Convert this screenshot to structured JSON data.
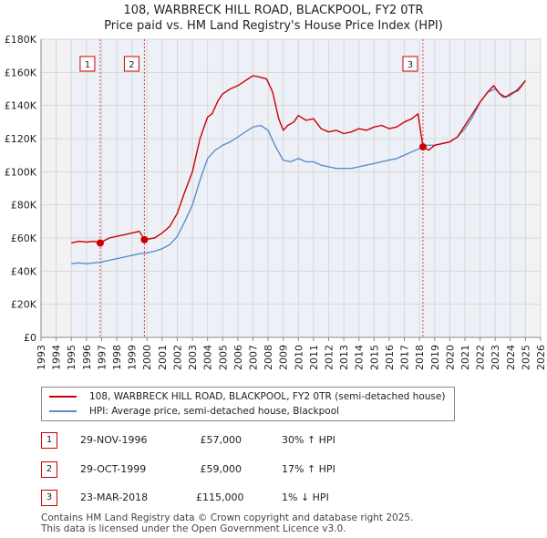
{
  "chart_data": {
    "type": "line",
    "title": "108, WARBRECK HILL ROAD, BLACKPOOL, FY2 0TR",
    "subtitle": "Price paid vs. HM Land Registry's House Price Index (HPI)",
    "xlabel": "",
    "ylabel": "",
    "xlim": [
      1993,
      2026
    ],
    "ylim": [
      0,
      180000
    ],
    "x_ticks": [
      "1993",
      "1994",
      "1995",
      "1996",
      "1997",
      "1998",
      "1999",
      "2000",
      "2001",
      "2002",
      "2003",
      "2004",
      "2005",
      "2006",
      "2007",
      "2008",
      "2009",
      "2010",
      "2011",
      "2012",
      "2013",
      "2014",
      "2015",
      "2016",
      "2017",
      "2018",
      "2019",
      "2020",
      "2021",
      "2022",
      "2023",
      "2024",
      "2025",
      "2026"
    ],
    "y_ticks": [
      {
        "value": 0,
        "label": "£0"
      },
      {
        "value": 20000,
        "label": "£20K"
      },
      {
        "value": 40000,
        "label": "£40K"
      },
      {
        "value": 60000,
        "label": "£60K"
      },
      {
        "value": 80000,
        "label": "£80K"
      },
      {
        "value": 100000,
        "label": "£100K"
      },
      {
        "value": 120000,
        "label": "£120K"
      },
      {
        "value": 140000,
        "label": "£140K"
      },
      {
        "value": 160000,
        "label": "£160K"
      },
      {
        "value": 180000,
        "label": "£180K"
      }
    ],
    "grid": true,
    "data_range_shading": [
      1995.0,
      2025.0
    ],
    "series": [
      {
        "name": "108, WARBRECK HILL ROAD, BLACKPOOL, FY2 0TR (semi-detached house)",
        "color": "#cc0000",
        "x": [
          1995.0,
          1995.5,
          1996.0,
          1996.5,
          1996.91,
          1997.5,
          1998.0,
          1998.5,
          1999.0,
          1999.5,
          1999.83,
          2000.5,
          2001.0,
          2001.5,
          2002.0,
          2002.5,
          2003.0,
          2003.5,
          2004.0,
          2004.3,
          2004.7,
          2005.0,
          2005.5,
          2006.0,
          2006.5,
          2007.0,
          2007.5,
          2007.9,
          2008.3,
          2008.7,
          2009.0,
          2009.3,
          2009.7,
          2010.0,
          2010.5,
          2011.0,
          2011.5,
          2012.0,
          2012.5,
          2013.0,
          2013.5,
          2014.0,
          2014.5,
          2015.0,
          2015.5,
          2016.0,
          2016.5,
          2017.0,
          2017.5,
          2017.9,
          2018.23,
          2018.6,
          2019.0,
          2019.5,
          2020.0,
          2020.5,
          2021.0,
          2021.5,
          2022.0,
          2022.5,
          2022.9,
          2023.3,
          2023.7,
          2024.0,
          2024.5,
          2025.0
        ],
        "y": [
          57000,
          58000,
          57500,
          58000,
          57000,
          60000,
          61000,
          62000,
          63000,
          64000,
          59000,
          60000,
          63000,
          67000,
          75000,
          88000,
          100000,
          120000,
          133000,
          135000,
          143000,
          147000,
          150000,
          152000,
          155000,
          158000,
          157000,
          156000,
          148000,
          132000,
          125000,
          128000,
          130000,
          134000,
          131000,
          132000,
          126000,
          124000,
          125000,
          123000,
          124000,
          126000,
          125000,
          127000,
          128000,
          126000,
          127000,
          130000,
          132000,
          135000,
          115000,
          113000,
          116000,
          117000,
          118000,
          121000,
          128000,
          135000,
          142000,
          148000,
          152000,
          147000,
          145000,
          147000,
          149000,
          155000
        ]
      },
      {
        "name": "HPI: Average price, semi-detached house, Blackpool",
        "color": "#5b8fcc",
        "x": [
          1995.0,
          1995.5,
          1996.0,
          1996.5,
          1997.0,
          1997.5,
          1998.0,
          1998.5,
          1999.0,
          1999.5,
          2000.0,
          2000.5,
          2001.0,
          2001.5,
          2002.0,
          2002.5,
          2003.0,
          2003.5,
          2004.0,
          2004.5,
          2005.0,
          2005.5,
          2006.0,
          2006.5,
          2007.0,
          2007.5,
          2008.0,
          2008.5,
          2009.0,
          2009.5,
          2010.0,
          2010.5,
          2011.0,
          2011.5,
          2012.0,
          2012.5,
          2013.0,
          2013.5,
          2014.0,
          2014.5,
          2015.0,
          2015.5,
          2016.0,
          2016.5,
          2017.0,
          2017.5,
          2018.0,
          2018.5,
          2019.0,
          2019.5,
          2020.0,
          2020.5,
          2021.0,
          2021.5,
          2022.0,
          2022.5,
          2023.0,
          2023.5,
          2024.0,
          2024.5,
          2025.0
        ],
        "y": [
          44500,
          45000,
          44500,
          45000,
          45500,
          46500,
          47500,
          48500,
          49500,
          50500,
          51000,
          52000,
          53500,
          56000,
          61000,
          70000,
          80000,
          95000,
          108000,
          113000,
          116000,
          118000,
          121000,
          124000,
          127000,
          128000,
          125000,
          115000,
          107000,
          106000,
          108000,
          106000,
          106000,
          104000,
          103000,
          102000,
          102000,
          102000,
          103000,
          104000,
          105000,
          106000,
          107000,
          108000,
          110000,
          112000,
          114000,
          116000,
          116000,
          117000,
          118000,
          121000,
          126000,
          133000,
          142000,
          148000,
          150000,
          145000,
          146000,
          150000,
          155000
        ]
      }
    ],
    "transactions": [
      {
        "label": "1",
        "x": 1996.91,
        "y": 57000
      },
      {
        "label": "2",
        "x": 1999.83,
        "y": 59000
      },
      {
        "label": "3",
        "x": 2018.23,
        "y": 115000
      }
    ]
  },
  "legend": {
    "property": "108, WARBRECK HILL ROAD, BLACKPOOL, FY2 0TR (semi-detached house)",
    "hpi": "HPI: Average price, semi-detached house, Blackpool"
  },
  "table": [
    {
      "num": "1",
      "date": "29-NOV-1996",
      "price": "£57,000",
      "hpi": "30% ↑ HPI"
    },
    {
      "num": "2",
      "date": "29-OCT-1999",
      "price": "£59,000",
      "hpi": "17% ↑ HPI"
    },
    {
      "num": "3",
      "date": "23-MAR-2018",
      "price": "£115,000",
      "hpi": "1% ↓ HPI"
    }
  ],
  "footer": {
    "line1": "Contains HM Land Registry data © Crown copyright and database right 2025.",
    "line2": "This data is licensed under the Open Government Licence v3.0."
  },
  "colors": {
    "property": "#cc0000",
    "hpi": "#5b8fcc",
    "grid": "#d8d8d8",
    "plot_bg": "#ffffff",
    "shade": "#eef0f7"
  }
}
